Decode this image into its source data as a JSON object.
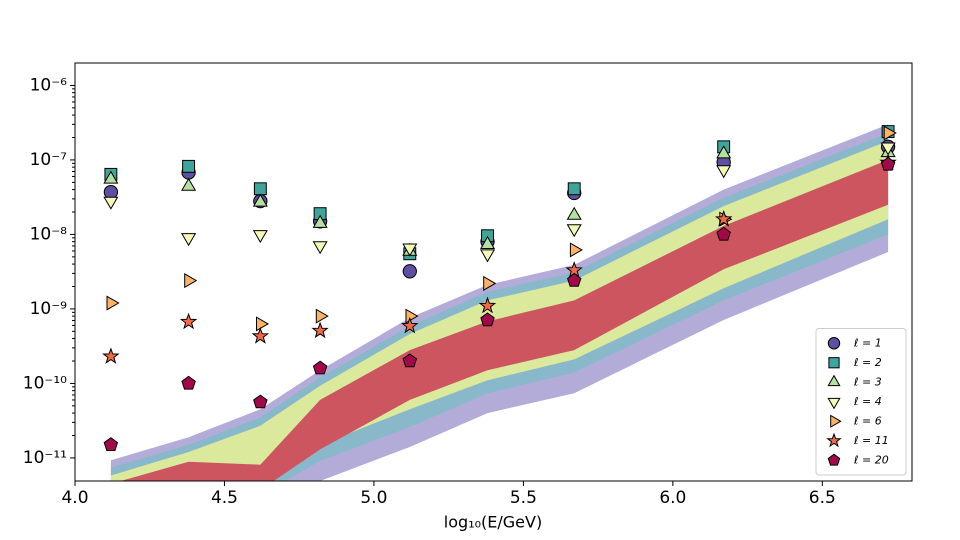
{
  "chart_data": {
    "type": "scatter",
    "xlabel": "log₁₀(E/GeV)",
    "xlim": [
      4.0,
      6.8
    ],
    "ylim": [
      4.9e-12,
      2e-06
    ],
    "yscale": "log",
    "xticks": [
      {
        "value": 4,
        "label": "4.0"
      },
      4.5,
      {
        "value": 5,
        "label": "5.0"
      },
      5.5,
      {
        "value": 6,
        "label": "6.0"
      },
      6.5
    ],
    "yticks": [
      {
        "value": 1e-11,
        "label": "10⁻¹¹"
      },
      {
        "value": 1e-10,
        "label": "10⁻¹⁰"
      },
      {
        "value": 1e-09,
        "label": "10⁻⁹"
      },
      {
        "value": 1e-08,
        "label": "10⁻⁸"
      },
      {
        "value": 1e-07,
        "label": "10⁻⁷"
      },
      {
        "value": 1e-06,
        "label": "10⁻⁶"
      }
    ],
    "legend": "lower right",
    "x": [
      4.12,
      4.38,
      4.62,
      4.82,
      5.12,
      5.38,
      5.67,
      6.17,
      6.72
    ],
    "bands": [
      {
        "color": "#b3acd9",
        "upper": [
          9.3e-12,
          1.9e-11,
          4.5e-11,
          1.5e-10,
          7.6e-10,
          2.1e-09,
          3.9e-09,
          4e-08,
          3e-07
        ],
        "lower": [
          8e-13,
          1.1e-12,
          1.7e-12,
          4.9e-12,
          1.4e-11,
          4e-11,
          7.4e-11,
          7.1e-10,
          5.8e-09
        ]
      },
      {
        "color": "#88b8c9",
        "upper": [
          7.4e-12,
          1.5e-11,
          3.5e-11,
          1.2e-10,
          5.9e-10,
          1.7e-09,
          3.1e-09,
          3.1e-08,
          2.3e-07
        ],
        "lower": [
          1.5e-12,
          2e-12,
          3.2e-12,
          9.1e-12,
          2.6e-11,
          7.4e-11,
          1.4e-10,
          1.3e-09,
          1e-08
        ]
      },
      {
        "color": "#dbe99c",
        "upper": [
          5.8e-12,
          1.2e-11,
          2.7e-11,
          9.3e-11,
          4.6e-10,
          1.3e-09,
          2.4e-09,
          2.4e-08,
          1.8e-07
        ],
        "lower": [
          2.4e-12,
          3.2e-12,
          5.4e-12,
          1.5e-11,
          4.5e-11,
          1.1e-10,
          2.1e-10,
          1.9e-09,
          1.6e-08
        ]
      },
      {
        "color": "#cc5560",
        "upper": [
          4.5e-12,
          8.9e-12,
          8.1e-12,
          6e-11,
          2.8e-10,
          6.8e-10,
          1.3e-09,
          1.3e-08,
          1e-07
        ],
        "lower": [
          2.8e-12,
          3.2e-12,
          3.7e-12,
          1.3e-11,
          6e-11,
          1.5e-10,
          2.8e-10,
          3.4e-09,
          2.5e-08
        ]
      }
    ],
    "series": [
      {
        "name": "ℓ = 1",
        "color": "#5e4fa2",
        "marker": "o",
        "values": [
          3.7e-08,
          6.8e-08,
          2.8e-08,
          1.5e-08,
          3.2e-09,
          8e-09,
          3.6e-08,
          9.3e-08,
          1.5e-07
        ]
      },
      {
        "name": "ℓ = 2",
        "color": "#3fa49a",
        "marker": "s",
        "values": [
          6.4e-08,
          8.2e-08,
          4.1e-08,
          1.9e-08,
          5.5e-09,
          9.6e-09,
          4.1e-08,
          1.5e-07,
          2.4e-07
        ]
      },
      {
        "name": "ℓ = 3",
        "color": "#b4e0a2",
        "marker": "^",
        "values": [
          5.5e-08,
          4.4e-08,
          2.7e-08,
          1.4e-08,
          5.9e-09,
          7.3e-09,
          1.8e-08,
          1.2e-07,
          1.25e-07
        ]
      },
      {
        "name": "ℓ = 4",
        "color": "#f6f8b8",
        "marker": "v",
        "values": [
          2.8e-08,
          9.1e-09,
          1e-08,
          7.1e-09,
          6.6e-09,
          5.5e-09,
          1.2e-08,
          7.4e-08,
          1.5e-07
        ]
      },
      {
        "name": "ℓ = 6",
        "color": "#fdb366",
        "marker": ">",
        "values": [
          1.2e-09,
          2.4e-09,
          6.3e-10,
          8e-10,
          8e-10,
          2.2e-09,
          6.2e-09,
          1.6e-08,
          2.3e-07
        ]
      },
      {
        "name": "ℓ = 11",
        "color": "#f26a45",
        "marker": "*",
        "values": [
          2.3e-10,
          6.7e-10,
          4.3e-10,
          5.1e-10,
          5.9e-10,
          1.1e-09,
          3.3e-09,
          1.6e-08,
          9.2e-08
        ]
      },
      {
        "name": "ℓ = 20",
        "color": "#a3094a",
        "marker": "p",
        "values": [
          1.5e-11,
          1e-10,
          5.6e-11,
          1.6e-10,
          2e-10,
          7.1e-10,
          2.4e-09,
          1e-08,
          8.7e-08
        ]
      }
    ]
  }
}
